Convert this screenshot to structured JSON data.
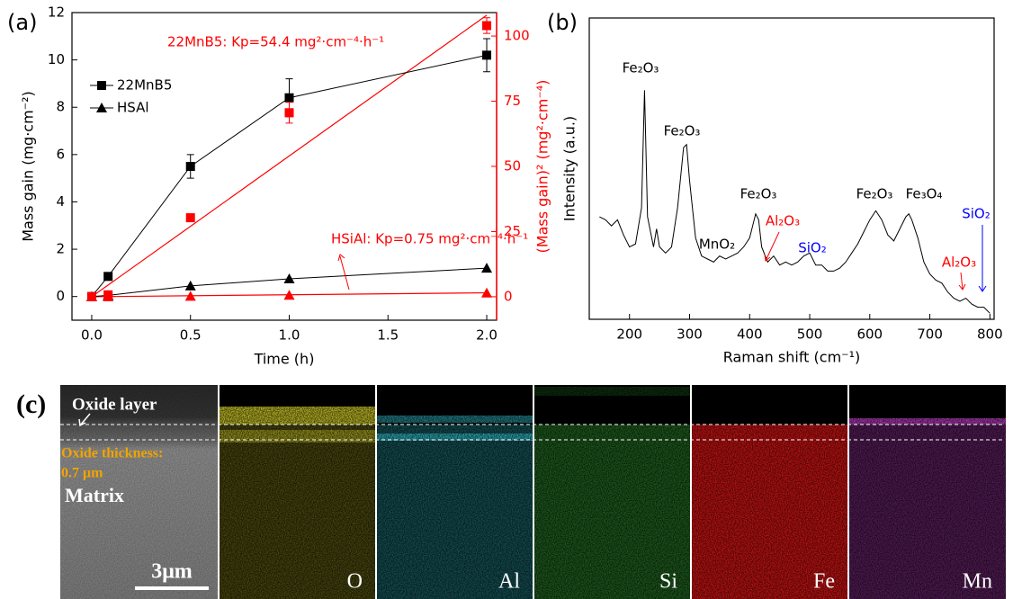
{
  "chart_data": [
    {
      "type": "line",
      "panel_label": "(a)",
      "x_label": "Time (h)",
      "y_label": "Mass gain (mg·cm⁻²)",
      "y2_label": "(Mass gain)² (mg²·cm⁻⁴)",
      "y2_color": "#ff0000",
      "x": [
        0,
        0.083,
        0.5,
        1,
        2
      ],
      "xlim": [
        -0.1,
        2.05
      ],
      "xticks": [
        {
          "value": 0,
          "label": "0.0"
        },
        {
          "value": 0.5,
          "label": "0.5"
        },
        {
          "value": 1,
          "label": "1.0"
        },
        {
          "value": 1.5,
          "label": "1.5"
        },
        {
          "value": 2,
          "label": "2.0"
        }
      ],
      "ylim": [
        -1,
        12
      ],
      "yticks": [
        0,
        2,
        4,
        6,
        8,
        10,
        12
      ],
      "y2lim": [
        -9,
        109
      ],
      "y2ticks": [
        0,
        25,
        50,
        75,
        100
      ],
      "series": [
        {
          "name": "22MnB5",
          "color": "#000000",
          "marker": "square",
          "values": [
            0,
            0.85,
            5.5,
            8.4,
            10.2
          ],
          "errors": [
            0,
            0.1,
            0.5,
            0.8,
            0.7
          ]
        },
        {
          "name": "HSAl",
          "color": "#000000",
          "marker": "triangle",
          "values": [
            0,
            0.05,
            0.45,
            0.75,
            1.2
          ]
        },
        {
          "color": "#ff0000",
          "marker": "square",
          "axis": "y2",
          "line": false,
          "values": [
            0,
            0.72,
            30.3,
            70.6,
            104
          ],
          "errors": [
            0,
            0,
            1,
            4,
            3
          ]
        },
        {
          "color": "#ff0000",
          "marker": "triangle",
          "axis": "y2",
          "line": false,
          "values": [
            0,
            0,
            0.2,
            0.56,
            1.44
          ]
        }
      ],
      "fits": [
        {
          "color": "#ff0000",
          "axis": "y2",
          "x": [
            0,
            2
          ],
          "values": [
            0,
            108
          ]
        },
        {
          "color": "#ff0000",
          "axis": "y2",
          "x": [
            0,
            2
          ],
          "values": [
            0,
            1.5
          ]
        }
      ],
      "annotations": [
        {
          "text": "22MnB5: Kp=54.4 mg²·cm⁻⁴·h⁻¹",
          "color": "#ff0000"
        },
        {
          "text": "HSiAl: Kp=0.75 mg²·cm⁻⁴·h⁻¹",
          "color": "#ff0000"
        }
      ]
    },
    {
      "type": "line",
      "panel_label": "(b)",
      "x_label": "Raman shift (cm⁻¹)",
      "y_label": "Intensity (a.u.)",
      "x": [
        150,
        160,
        170,
        180,
        190,
        200,
        210,
        220,
        225,
        230,
        240,
        245,
        250,
        260,
        270,
        280,
        290,
        295,
        300,
        310,
        320,
        330,
        340,
        350,
        360,
        370,
        380,
        390,
        400,
        410,
        415,
        420,
        430,
        440,
        450,
        460,
        470,
        480,
        490,
        500,
        510,
        520,
        530,
        540,
        550,
        560,
        570,
        580,
        590,
        600,
        610,
        620,
        630,
        640,
        650,
        660,
        665,
        670,
        680,
        690,
        700,
        710,
        720,
        730,
        740,
        750,
        760,
        770,
        780,
        790,
        800
      ],
      "xlim": [
        133,
        807
      ],
      "xticks": [
        200,
        300,
        400,
        500,
        600,
        700,
        800
      ],
      "ylim": [
        0,
        100
      ],
      "series": [
        {
          "color": "#000000",
          "values": [
            34,
            33,
            31,
            33,
            28,
            24,
            25,
            37,
            76,
            34,
            24,
            30,
            24,
            22,
            24,
            37,
            57,
            58,
            46,
            27,
            21,
            20,
            19,
            21,
            20,
            21,
            22,
            24,
            27,
            35,
            33,
            24,
            19,
            21,
            18,
            19,
            18,
            19,
            21,
            22,
            18,
            18,
            16,
            16,
            17,
            19,
            22,
            25,
            29,
            33,
            36,
            33,
            28,
            26,
            30,
            34,
            35,
            33,
            27,
            19,
            15,
            13,
            12,
            9,
            7,
            6,
            7,
            5,
            4,
            4,
            2
          ]
        }
      ],
      "annotations": [
        {
          "text": "Fe₂O₃",
          "color": "#000000"
        },
        {
          "text": "Fe₂O₃",
          "color": "#000000"
        },
        {
          "text": "MnO₂",
          "color": "#000000"
        },
        {
          "text": "Fe₂O₃",
          "color": "#000000"
        },
        {
          "text": "Al₂O₃",
          "color": "#ff0000"
        },
        {
          "text": "SiO₂",
          "color": "#0000ff"
        },
        {
          "text": "Fe₂O₃",
          "color": "#000000"
        },
        {
          "text": "Fe₃O₄",
          "color": "#000000"
        },
        {
          "text": "SiO₂",
          "color": "#0000ff"
        },
        {
          "text": "Al₂O₃",
          "color": "#ff0000"
        }
      ]
    }
  ],
  "panel_c": {
    "panel_label": "(c)",
    "oxide_layer": "Oxide layer",
    "oxide_thickness": [
      "Oxide thickness:",
      "0.7 μm"
    ],
    "matrix": "Matrix",
    "scale_bar": "3μm",
    "maps": [
      {
        "element": "O",
        "color": "#d4cf2a"
      },
      {
        "element": "Al",
        "color": "#2fb5c0"
      },
      {
        "element": "Si",
        "color": "#3dbb3d"
      },
      {
        "element": "Fe",
        "color": "#e01515"
      },
      {
        "element": "Mn",
        "color": "#c040c8"
      }
    ]
  }
}
